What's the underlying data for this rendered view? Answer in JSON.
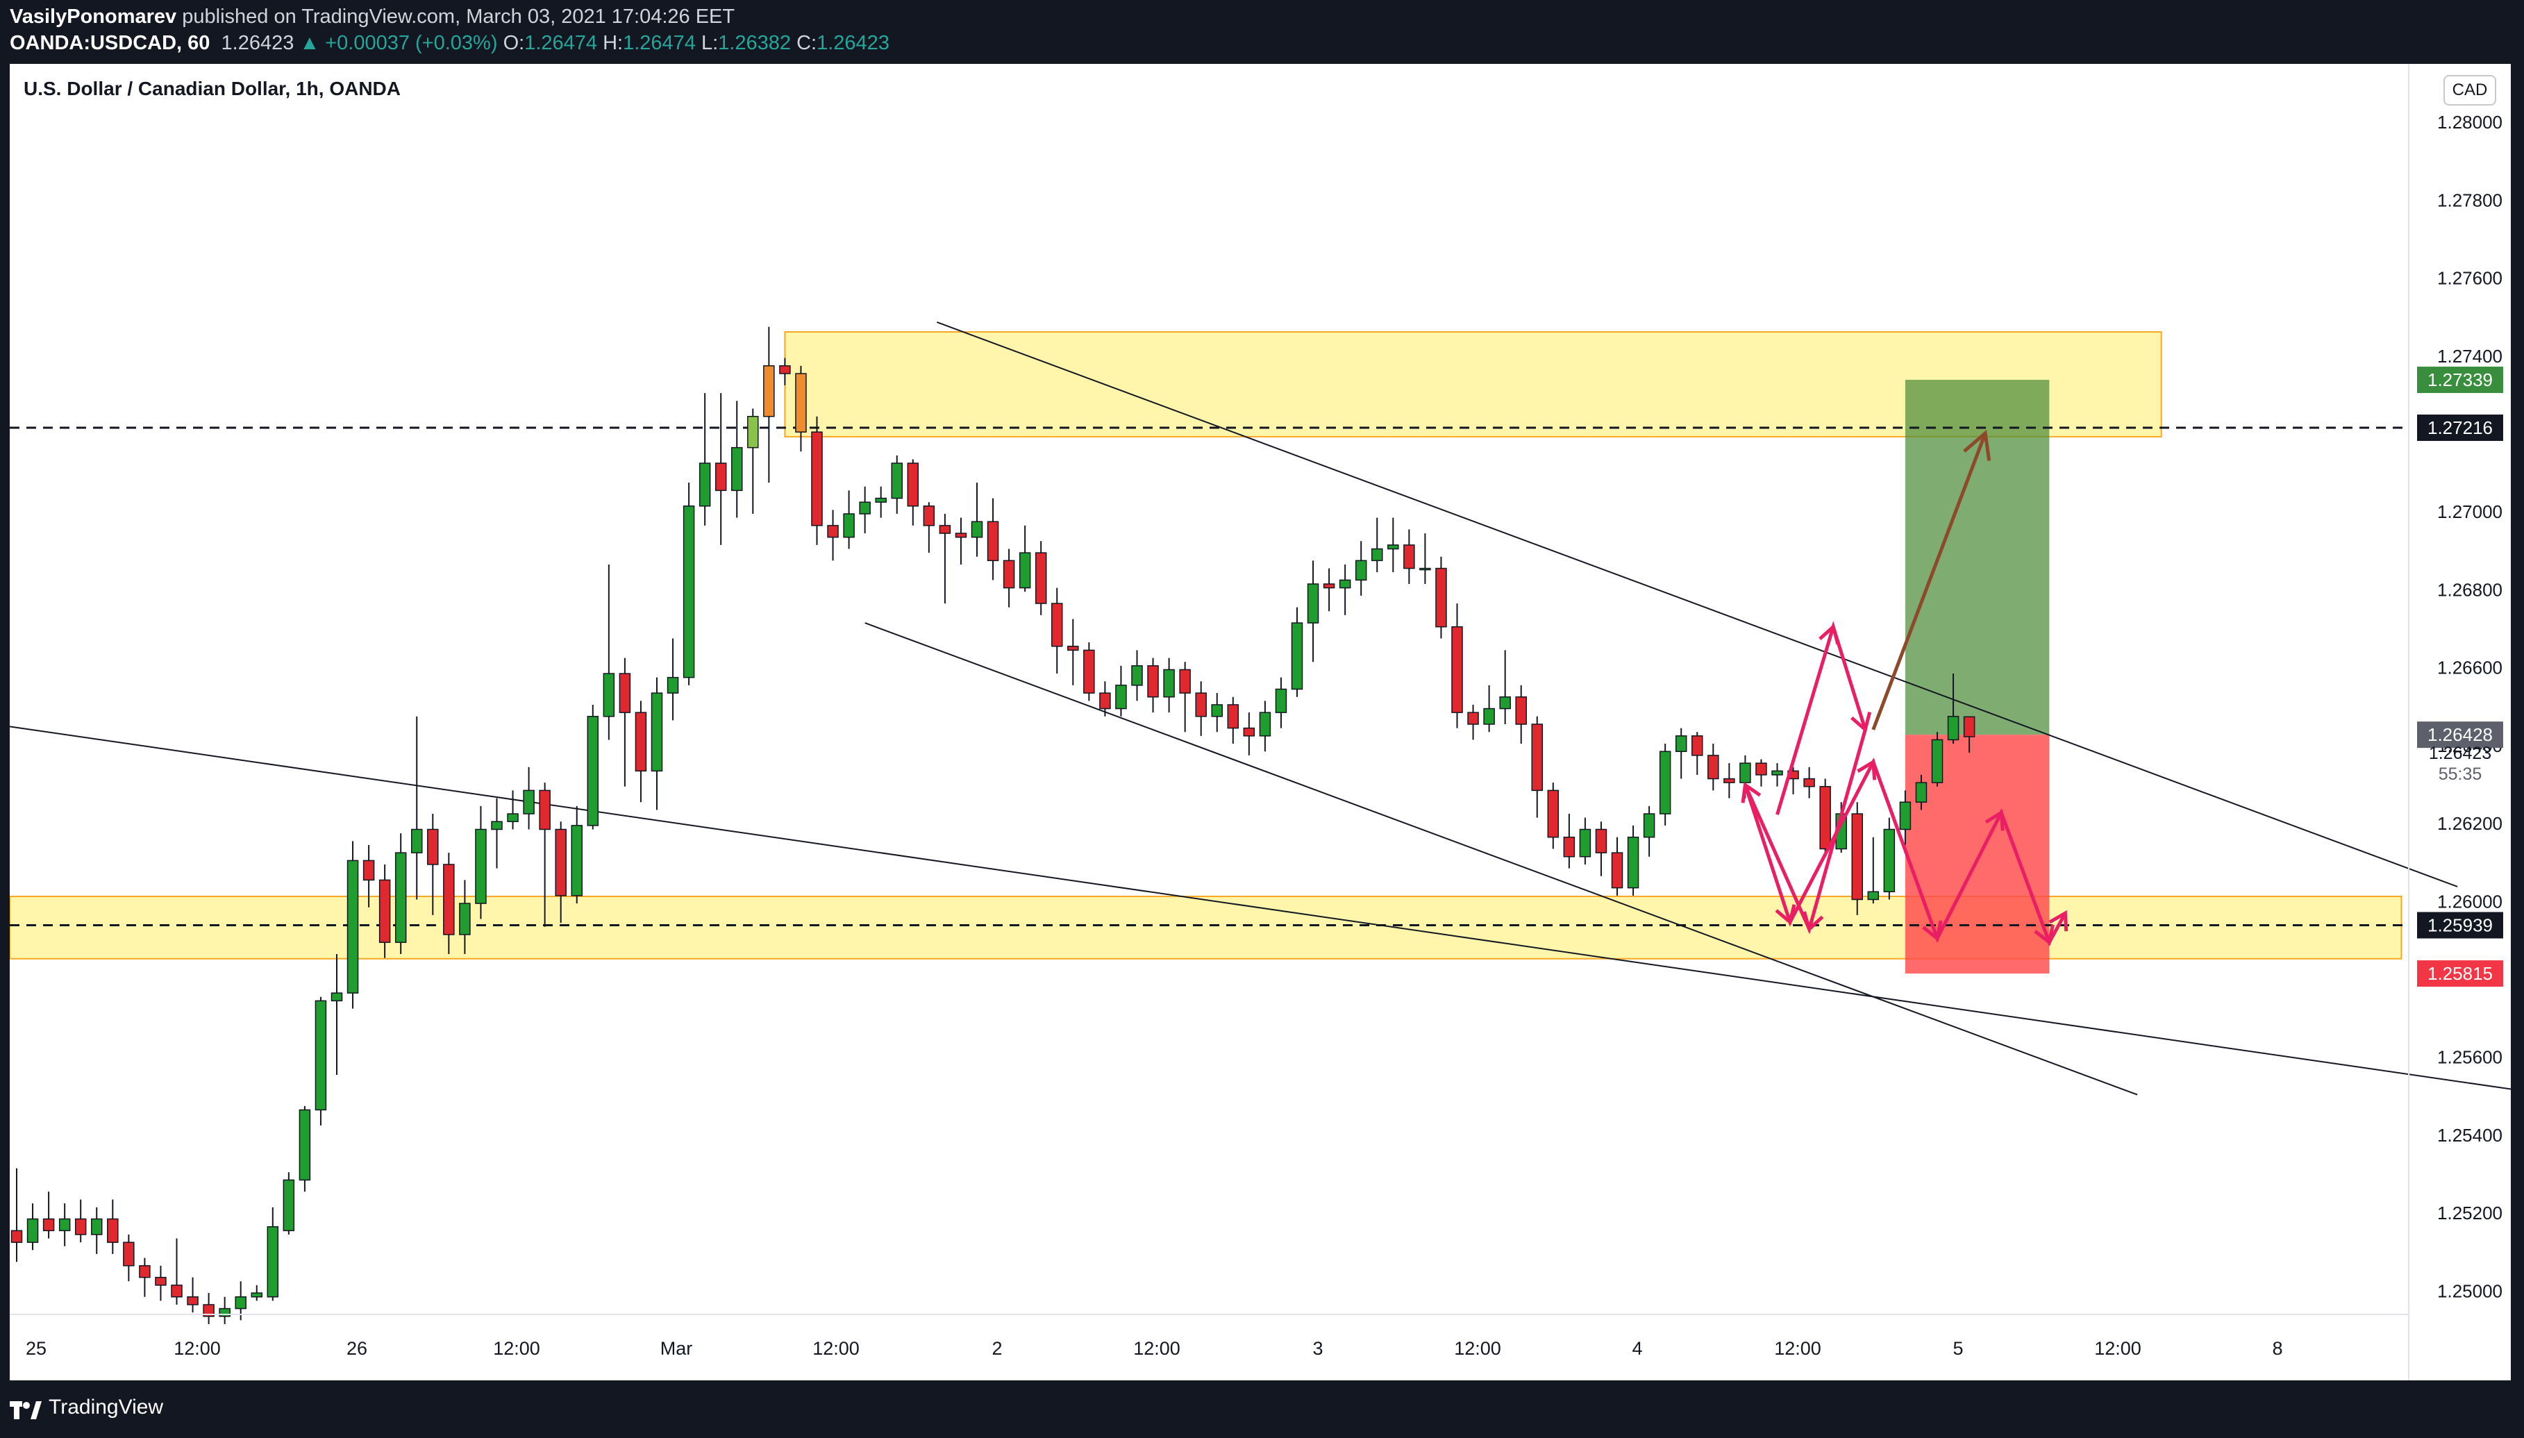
{
  "header": {
    "author": "VasilyPonomarev",
    "published_text": "published on TradingView.com, March 03, 2021 17:04:26 EET",
    "symbol": "OANDA:USDCAD, 60",
    "last": "1.26423",
    "change": "+0.00037 (+0.03%)",
    "open_label": "O:",
    "open": "1.26474",
    "high_label": "H:",
    "high": "1.26474",
    "low_label": "L:",
    "low": "1.26382",
    "close_label": "C:",
    "close": "1.26423"
  },
  "footer": {
    "brand": "TradingView"
  },
  "chart_data": {
    "type": "candlestick",
    "title": "U.S. Dollar / Canadian Dollar, 1h, OANDA",
    "currency": "CAD",
    "ylim": [
      1.2494,
      1.2815
    ],
    "y_ticks": [
      "1.25000",
      "1.25200",
      "1.25400",
      "1.25600",
      "1.25800",
      "1.26000",
      "1.26200",
      "1.26400",
      "1.26600",
      "1.26800",
      "1.27000",
      "1.27200",
      "1.27400",
      "1.27600",
      "1.27800",
      "1.28000"
    ],
    "x_ticks": [
      "25",
      "12:00",
      "26",
      "12:00",
      "Mar",
      "12:00",
      "2",
      "12:00",
      "3",
      "12:00",
      "4",
      "12:00",
      "5",
      "12:00",
      "8"
    ],
    "price_labels": [
      {
        "value": 1.27339,
        "text": "1.27339",
        "color": "#388e3c"
      },
      {
        "value": 1.27216,
        "text": "1.27216",
        "color": "#131722"
      },
      {
        "value": 1.26428,
        "text": "1.26428",
        "color": "#5d606b"
      },
      {
        "value": 1.25939,
        "text": "1.25939",
        "color": "#131722"
      },
      {
        "value": 1.25815,
        "text": "1.25815",
        "color": "#f23645"
      }
    ],
    "last_price": {
      "value": 1.26423,
      "text": "1.26423",
      "countdown": "55:35"
    },
    "zones": [
      {
        "name": "resistance",
        "x_from": 48,
        "x_to": 134,
        "y_from": 1.27193,
        "y_to": 1.27462,
        "color": "#fff59d"
      },
      {
        "name": "support",
        "x_from": -1,
        "x_to": 149,
        "y_from": 1.25853,
        "y_to": 1.26013,
        "color": "#fff59d"
      }
    ],
    "horizontal_lines": [
      1.27216,
      1.25939
    ],
    "position": {
      "x_from": 118,
      "x_to": 127,
      "entry": 1.26428,
      "target": 1.27339,
      "stop": 1.25815
    },
    "trendlines": [
      {
        "from": [
          57.5,
          1.27487
        ],
        "to": [
          152.5,
          1.26038
        ]
      },
      {
        "from": [
          53,
          1.26715
        ],
        "to": [
          132.5,
          1.25504
        ]
      },
      {
        "from": [
          -1,
          1.26449
        ],
        "to": [
          170,
          1.25434
        ]
      }
    ],
    "pink_path": [
      [
        110,
        1.26223
      ],
      [
        113.5,
        1.26705
      ],
      [
        115.5,
        1.26441
      ],
      [
        112,
        1.25929
      ],
      [
        108,
        1.26299
      ],
      [
        110.8,
        1.25947
      ],
      [
        116,
        1.26358
      ],
      [
        120,
        1.25905
      ],
      [
        124,
        1.26228
      ],
      [
        127,
        1.25895
      ],
      [
        128,
        1.2597
      ]
    ],
    "brown_arrow": {
      "from": [
        116,
        1.26441
      ],
      "to": [
        123,
        1.27202
      ]
    },
    "candles": [
      [
        1.25155,
        1.25125,
        1.25315,
        1.25075
      ],
      [
        1.25125,
        1.25185,
        1.25225,
        1.25105
      ],
      [
        1.25185,
        1.25155,
        1.25255,
        1.25135
      ],
      [
        1.25155,
        1.25185,
        1.25225,
        1.25115
      ],
      [
        1.25185,
        1.25145,
        1.25235,
        1.25125
      ],
      [
        1.25145,
        1.25185,
        1.25215,
        1.25095
      ],
      [
        1.25185,
        1.25125,
        1.25235,
        1.25095
      ],
      [
        1.25125,
        1.25065,
        1.25145,
        1.25025
      ],
      [
        1.25065,
        1.25035,
        1.25085,
        1.24985
      ],
      [
        1.25035,
        1.25015,
        1.25065,
        1.24975
      ],
      [
        1.25015,
        1.24985,
        1.25135,
        1.24965
      ],
      [
        1.24985,
        1.24965,
        1.25035,
        1.24945
      ],
      [
        1.24965,
        1.24935,
        1.24995,
        1.24915
      ],
      [
        1.24935,
        1.24955,
        1.24985,
        1.24915
      ],
      [
        1.24955,
        1.24985,
        1.25025,
        1.24925
      ],
      [
        1.24985,
        1.24995,
        1.25015,
        1.24975
      ],
      [
        1.24985,
        1.25165,
        1.25215,
        1.24975
      ],
      [
        1.25155,
        1.25285,
        1.25305,
        1.25145
      ],
      [
        1.25285,
        1.25465,
        1.25475,
        1.25255
      ],
      [
        1.25465,
        1.25745,
        1.25755,
        1.25425
      ],
      [
        1.25745,
        1.25765,
        1.25865,
        1.25555
      ],
      [
        1.25765,
        1.26105,
        1.26155,
        1.25725
      ],
      [
        1.26105,
        1.26055,
        1.26145,
        1.25985
      ],
      [
        1.26055,
        1.25895,
        1.26095,
        1.25855
      ],
      [
        1.25895,
        1.26125,
        1.26175,
        1.25865
      ],
      [
        1.26125,
        1.26185,
        1.26475,
        1.26005
      ],
      [
        1.26185,
        1.26095,
        1.26225,
        1.25965
      ],
      [
        1.26095,
        1.25915,
        1.26125,
        1.25865
      ],
      [
        1.25915,
        1.25995,
        1.26055,
        1.25865
      ],
      [
        1.25995,
        1.26185,
        1.26245,
        1.25955
      ],
      [
        1.26185,
        1.26205,
        1.26265,
        1.26085
      ],
      [
        1.26205,
        1.26225,
        1.26285,
        1.26185
      ],
      [
        1.26225,
        1.26285,
        1.26345,
        1.26185
      ],
      [
        1.26285,
        1.26185,
        1.26305,
        1.25935
      ],
      [
        1.26185,
        1.26015,
        1.26205,
        1.25945
      ],
      [
        1.26015,
        1.26195,
        1.26245,
        1.25995
      ],
      [
        1.26195,
        1.26475,
        1.26505,
        1.26185
      ],
      [
        1.26475,
        1.26585,
        1.26865,
        1.26415
      ],
      [
        1.26585,
        1.26485,
        1.26625,
        1.26295
      ],
      [
        1.26485,
        1.26335,
        1.26515,
        1.26255
      ],
      [
        1.26335,
        1.26535,
        1.26575,
        1.26235
      ],
      [
        1.26535,
        1.26575,
        1.26675,
        1.26465
      ],
      [
        1.26575,
        1.27015,
        1.27075,
        1.26555
      ],
      [
        1.27015,
        1.27125,
        1.27305,
        1.26965
      ],
      [
        1.27125,
        1.27055,
        1.27305,
        1.26915
      ],
      [
        1.27055,
        1.27165,
        1.27285,
        1.26985
      ],
      [
        1.27165,
        1.27245,
        1.27265,
        1.26995
      ],
      [
        1.27245,
        1.27375,
        1.27475,
        1.27075
      ],
      [
        1.27375,
        1.27355,
        1.27395,
        1.27325
      ],
      [
        1.27355,
        1.27205,
        1.27375,
        1.27155
      ],
      [
        1.27205,
        1.26965,
        1.27245,
        1.26915
      ],
      [
        1.26965,
        1.26935,
        1.27005,
        1.26875
      ],
      [
        1.26935,
        1.26995,
        1.27055,
        1.26905
      ],
      [
        1.26995,
        1.27025,
        1.27065,
        1.26945
      ],
      [
        1.27025,
        1.27035,
        1.27065,
        1.26985
      ],
      [
        1.27035,
        1.27125,
        1.27145,
        1.26995
      ],
      [
        1.27125,
        1.27015,
        1.27135,
        1.26965
      ],
      [
        1.27015,
        1.26965,
        1.27025,
        1.26895
      ],
      [
        1.26965,
        1.26945,
        1.26995,
        1.26765
      ],
      [
        1.26945,
        1.26935,
        1.26985,
        1.26865
      ],
      [
        1.26935,
        1.26975,
        1.27075,
        1.26885
      ],
      [
        1.26975,
        1.26875,
        1.27035,
        1.26825
      ],
      [
        1.26875,
        1.26805,
        1.26905,
        1.26755
      ],
      [
        1.26805,
        1.26895,
        1.26965,
        1.26795
      ],
      [
        1.26895,
        1.26765,
        1.26925,
        1.26735
      ],
      [
        1.26765,
        1.26655,
        1.26805,
        1.26585
      ],
      [
        1.26655,
        1.26645,
        1.26725,
        1.26555
      ],
      [
        1.26645,
        1.26535,
        1.26665,
        1.26515
      ],
      [
        1.26535,
        1.26495,
        1.26565,
        1.26475
      ],
      [
        1.26495,
        1.26555,
        1.26605,
        1.26475
      ],
      [
        1.26555,
        1.26605,
        1.26645,
        1.26515
      ],
      [
        1.26605,
        1.26525,
        1.26625,
        1.26485
      ],
      [
        1.26525,
        1.26595,
        1.26625,
        1.26485
      ],
      [
        1.26595,
        1.26535,
        1.26615,
        1.26435
      ],
      [
        1.26535,
        1.26475,
        1.26565,
        1.26425
      ],
      [
        1.26475,
        1.26505,
        1.26535,
        1.26435
      ],
      [
        1.26505,
        1.26445,
        1.26525,
        1.26405
      ],
      [
        1.26445,
        1.26425,
        1.26485,
        1.26375
      ],
      [
        1.26425,
        1.26485,
        1.26515,
        1.26385
      ],
      [
        1.26485,
        1.26545,
        1.26575,
        1.26445
      ],
      [
        1.26545,
        1.26715,
        1.26755,
        1.26525
      ],
      [
        1.26715,
        1.26815,
        1.26875,
        1.26615
      ],
      [
        1.26815,
        1.26805,
        1.26855,
        1.26745
      ],
      [
        1.26805,
        1.26825,
        1.26865,
        1.26735
      ],
      [
        1.26825,
        1.26875,
        1.26925,
        1.26785
      ],
      [
        1.26875,
        1.26905,
        1.26985,
        1.26845
      ],
      [
        1.26905,
        1.26915,
        1.26985,
        1.26845
      ],
      [
        1.26915,
        1.26855,
        1.26955,
        1.26815
      ],
      [
        1.26855,
        1.26855,
        1.26945,
        1.26815
      ],
      [
        1.26855,
        1.26705,
        1.26885,
        1.26675
      ],
      [
        1.26705,
        1.26485,
        1.26765,
        1.26445
      ],
      [
        1.26485,
        1.26455,
        1.26505,
        1.26415
      ],
      [
        1.26455,
        1.26495,
        1.26555,
        1.26435
      ],
      [
        1.26495,
        1.26525,
        1.26645,
        1.26455
      ],
      [
        1.26525,
        1.26455,
        1.26555,
        1.26405
      ],
      [
        1.26455,
        1.26285,
        1.26475,
        1.26215
      ],
      [
        1.26285,
        1.26165,
        1.26305,
        1.26135
      ],
      [
        1.26165,
        1.26115,
        1.26225,
        1.26085
      ],
      [
        1.26115,
        1.26185,
        1.26215,
        1.26095
      ],
      [
        1.26185,
        1.26125,
        1.26205,
        1.26065
      ],
      [
        1.26125,
        1.26035,
        1.26165,
        1.26015
      ],
      [
        1.26035,
        1.26165,
        1.26195,
        1.26015
      ],
      [
        1.26165,
        1.26225,
        1.26245,
        1.26115
      ],
      [
        1.26225,
        1.26385,
        1.26405,
        1.26195
      ],
      [
        1.26385,
        1.26425,
        1.26445,
        1.26315
      ],
      [
        1.26425,
        1.26375,
        1.26435,
        1.26325
      ],
      [
        1.26375,
        1.26315,
        1.26405,
        1.26285
      ],
      [
        1.26315,
        1.26305,
        1.26355,
        1.26265
      ],
      [
        1.26305,
        1.26355,
        1.26375,
        1.26265
      ],
      [
        1.26355,
        1.26325,
        1.26365,
        1.26295
      ],
      [
        1.26325,
        1.26335,
        1.26355,
        1.26295
      ],
      [
        1.26335,
        1.26315,
        1.26345,
        1.26275
      ],
      [
        1.26315,
        1.26295,
        1.26345,
        1.26265
      ],
      [
        1.26295,
        1.26135,
        1.26315,
        1.26115
      ],
      [
        1.26135,
        1.26225,
        1.26255,
        1.26125
      ],
      [
        1.26225,
        1.26005,
        1.26255,
        1.25965
      ],
      [
        1.26005,
        1.26025,
        1.26165,
        1.25995
      ],
      [
        1.26025,
        1.26185,
        1.26215,
        1.26005
      ],
      [
        1.26185,
        1.26255,
        1.26285,
        1.26145
      ],
      [
        1.26255,
        1.26305,
        1.26325,
        1.26235
      ],
      [
        1.26305,
        1.26415,
        1.26435,
        1.26295
      ],
      [
        1.26415,
        1.26475,
        1.26585,
        1.26405
      ],
      [
        1.26474,
        1.26423,
        1.26474,
        1.26382
      ]
    ]
  }
}
